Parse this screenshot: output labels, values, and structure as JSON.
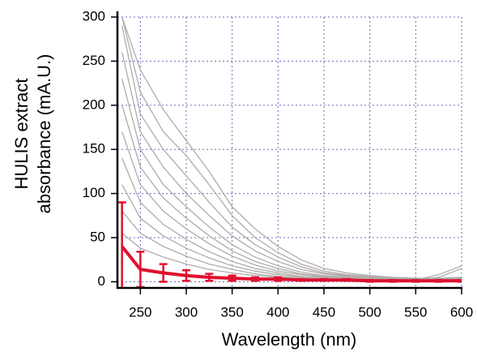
{
  "chart_data": {
    "type": "line",
    "x_label": "Wavelength (nm)",
    "y_label": [
      "HULIS extract",
      "absorbance (mA.U.)"
    ],
    "x": [
      230,
      250,
      275,
      300,
      325,
      350,
      375,
      400,
      425,
      450,
      475,
      500,
      525,
      550,
      575,
      600
    ],
    "series": [
      {
        "color": "#b0abaa",
        "values": [
          300,
          240,
          195,
          160,
          125,
          85,
          60,
          40,
          25,
          15,
          10,
          7,
          5,
          4,
          4,
          5
        ]
      },
      {
        "color": "#b0abaa",
        "values": [
          300,
          215,
          170,
          143,
          110,
          75,
          50,
          33,
          20,
          12,
          8,
          6,
          4,
          3,
          3,
          4
        ]
      },
      {
        "color": "#b0abaa",
        "values": [
          290,
          190,
          150,
          120,
          90,
          62,
          42,
          28,
          17,
          10,
          7,
          5,
          4,
          3,
          3,
          3
        ]
      },
      {
        "color": "#b0abaa",
        "values": [
          260,
          170,
          130,
          100,
          75,
          52,
          35,
          23,
          14,
          9,
          6,
          4,
          3,
          3,
          2,
          3
        ]
      },
      {
        "color": "#b0abaa",
        "values": [
          230,
          150,
          110,
          85,
          62,
          42,
          28,
          18,
          11,
          7,
          5,
          3,
          3,
          2,
          2,
          2
        ]
      },
      {
        "color": "#b0abaa",
        "values": [
          200,
          130,
          95,
          72,
          52,
          35,
          23,
          15,
          9,
          6,
          4,
          3,
          2,
          2,
          2,
          2
        ]
      },
      {
        "color": "#b0abaa",
        "values": [
          170,
          110,
          80,
          60,
          43,
          29,
          19,
          12,
          8,
          5,
          3,
          3,
          2,
          2,
          2,
          2
        ]
      },
      {
        "color": "#b0abaa",
        "values": [
          140,
          90,
          65,
          48,
          34,
          23,
          15,
          10,
          6,
          4,
          3,
          2,
          2,
          2,
          2,
          2
        ]
      },
      {
        "color": "#b0abaa",
        "values": [
          110,
          72,
          52,
          38,
          27,
          18,
          12,
          8,
          5,
          3,
          2,
          2,
          2,
          2,
          3,
          4
        ]
      },
      {
        "color": "#b0abaa",
        "values": [
          80,
          55,
          40,
          29,
          20,
          14,
          9,
          6,
          4,
          3,
          2,
          2,
          2,
          2,
          5,
          15
        ]
      },
      {
        "color": "#b0abaa",
        "values": [
          55,
          38,
          28,
          20,
          14,
          10,
          7,
          5,
          3,
          2,
          2,
          2,
          2,
          2,
          8,
          18
        ]
      },
      {
        "color": "#e0102e",
        "values": [
          40,
          14,
          10,
          7,
          5,
          4,
          3,
          3,
          2,
          2,
          2,
          1,
          1,
          1,
          1,
          1
        ],
        "errors": [
          50,
          20,
          10,
          6,
          4,
          3,
          2,
          2,
          1,
          1,
          1,
          1,
          1,
          1,
          1,
          1
        ]
      }
    ],
    "xlim": [
      225,
      600
    ],
    "ylim": [
      -7,
      300
    ],
    "xticks": [
      250,
      300,
      350,
      400,
      450,
      500,
      550,
      600
    ],
    "yticks": [
      0,
      50,
      100,
      150,
      200,
      250,
      300
    ],
    "grid": true,
    "grid_color": "#6a6ab8"
  }
}
